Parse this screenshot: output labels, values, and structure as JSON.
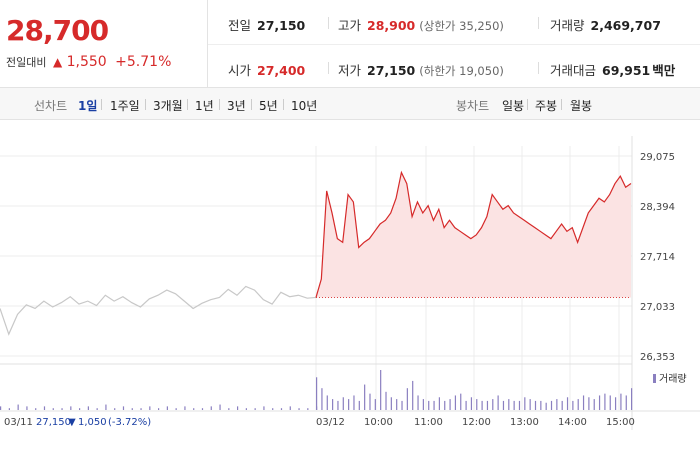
{
  "summary": {
    "price": "28,700",
    "change_label": "전일대비",
    "change_arrow": "▲",
    "change_value": "1,550",
    "change_pct": "+5.71%",
    "prev_close_label": "전일",
    "prev_close": "27,150",
    "open_label": "시가",
    "open": "27,400",
    "high_label": "고가",
    "high": "28,900",
    "upper_limit_text": "(상한가 35,250)",
    "low_label": "저가",
    "low": "27,150",
    "lower_limit_text": "(하한가 19,050)",
    "volume_label": "거래량",
    "volume": "2,469,707",
    "amount_label": "거래대금",
    "amount": "69,951",
    "amount_unit": "백만"
  },
  "tabs": {
    "line_label": "선차트",
    "line_items": [
      "1일",
      "1주일",
      "3개월",
      "1년",
      "3년",
      "5년",
      "10년"
    ],
    "active_line": "1일",
    "candle_label": "봉차트",
    "candle_items": [
      "일봉",
      "주봉",
      "월봉"
    ]
  },
  "colors": {
    "up": "#d62a2a",
    "down": "#1a3fa3",
    "prev_day_line": "#c8c8c8",
    "area_fill": "#fbe3e3",
    "volume_bar": "#8a7fc0"
  },
  "chart_data": {
    "type": "line",
    "ylim": [
      26353,
      29075
    ],
    "y_ticks": [
      "29,075",
      "28,394",
      "27,714",
      "27,033",
      "26,353"
    ],
    "y_tick_values": [
      29075,
      28394,
      27714,
      27033,
      26353
    ],
    "x_ticks": [
      "03/11",
      "03/12",
      "10:00",
      "11:00",
      "12:00",
      "13:00",
      "14:00",
      "15:00"
    ],
    "prev_day": {
      "date": "03/11",
      "close_text": "27,150",
      "change_arrow": "▼",
      "change_text": "1,050",
      "pct_text": "(-3.72%)"
    },
    "baseline": 27150,
    "series": [
      {
        "values_prev_day": [
          27000,
          26650,
          26920,
          27050,
          27000,
          27100,
          27020,
          27080,
          27160,
          27060,
          27100,
          27040,
          27180,
          27100,
          27160,
          27080,
          27020,
          27130,
          27180,
          27250,
          27200,
          27100,
          27000,
          27070,
          27120,
          27150,
          27260,
          27180,
          27300,
          27250,
          27120,
          27060,
          27220,
          27160,
          27180,
          27140,
          27150
        ]
      },
      {
        "values_today": [
          27150,
          27400,
          28600,
          28300,
          27950,
          27900,
          28550,
          28450,
          27830,
          27900,
          27950,
          28050,
          28150,
          28200,
          28300,
          28500,
          28850,
          28700,
          28250,
          28450,
          28300,
          28400,
          28200,
          28350,
          28100,
          28200,
          28100,
          28050,
          28000,
          27950,
          28000,
          28100,
          28250,
          28550,
          28450,
          28350,
          28400,
          28300,
          28250,
          28200,
          28150,
          28100,
          28050,
          28000,
          27950,
          28050,
          28150,
          28050,
          28100,
          27900,
          28100,
          28300,
          28400,
          28500,
          28450,
          28550,
          28700,
          28800,
          28650,
          28700
        ]
      }
    ],
    "volume_legend": "거래량",
    "volume_prev_day": [
      2,
      1,
      3,
      2,
      1,
      2,
      1,
      1,
      2,
      1,
      2,
      1,
      3,
      1,
      2,
      1,
      1,
      2,
      1,
      2,
      1,
      2,
      1,
      1,
      2,
      3,
      1,
      2,
      1,
      1,
      2,
      1,
      1,
      2,
      1,
      1,
      2
    ],
    "volume_today": [
      18,
      12,
      8,
      6,
      5,
      7,
      6,
      8,
      5,
      14,
      9,
      6,
      22,
      10,
      7,
      6,
      5,
      12,
      16,
      8,
      6,
      5,
      5,
      7,
      5,
      6,
      8,
      9,
      5,
      7,
      6,
      5,
      5,
      6,
      8,
      5,
      6,
      5,
      5,
      7,
      6,
      5,
      5,
      4,
      5,
      6,
      5,
      7,
      5,
      6,
      8,
      7,
      6,
      8,
      9,
      8,
      7,
      9,
      8,
      12
    ]
  }
}
